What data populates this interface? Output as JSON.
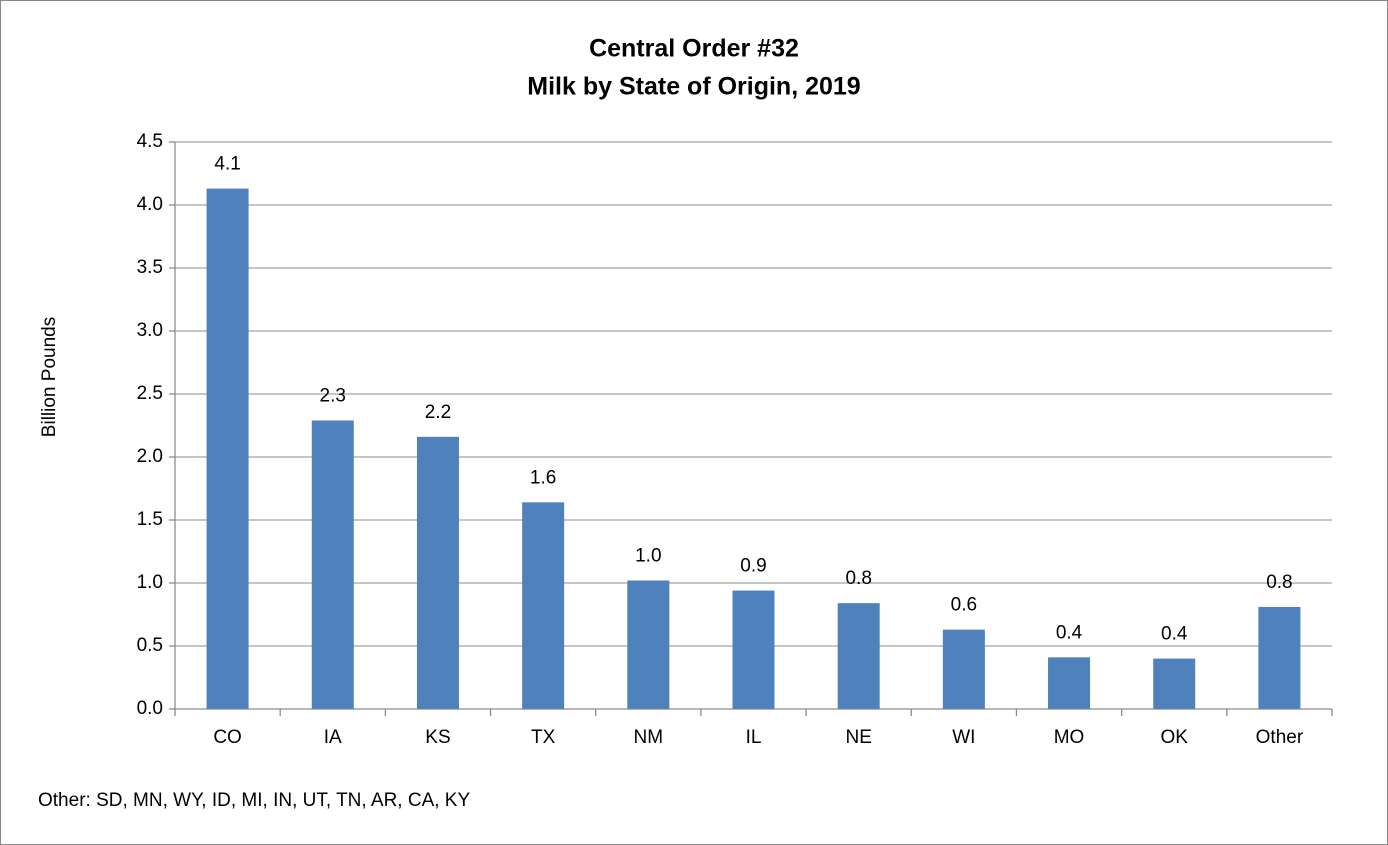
{
  "chart_data": {
    "type": "bar",
    "title": "Central Order #32",
    "subtitle": "Milk by State of Origin, 2019",
    "y_label": "Billion Pounds",
    "footnote": "Other: SD, MN, WY, ID, MI, IN, UT, TN, AR, CA, KY",
    "categories": [
      "CO",
      "IA",
      "KS",
      "TX",
      "NM",
      "IL",
      "NE",
      "WI",
      "MO",
      "OK",
      "Other"
    ],
    "values": [
      4.13,
      2.29,
      2.16,
      1.64,
      1.02,
      0.94,
      0.84,
      0.63,
      0.41,
      0.4,
      0.81
    ],
    "value_labels": [
      "4.1",
      "2.3",
      "2.2",
      "1.6",
      "1.0",
      "0.9",
      "0.8",
      "0.6",
      "0.4",
      "0.4",
      "0.8"
    ],
    "color": "#4f81bd",
    "ylim": [
      0,
      4.5
    ],
    "yticks": [
      {
        "value": 0,
        "label": "0.0"
      },
      0.5,
      {
        "value": 1,
        "label": "1.0"
      },
      1.5,
      {
        "value": 2,
        "label": "2.0"
      },
      2.5,
      {
        "value": 3,
        "label": "3.0"
      },
      3.5,
      {
        "value": 4,
        "label": "4.0"
      },
      4.5
    ],
    "grid": true
  }
}
